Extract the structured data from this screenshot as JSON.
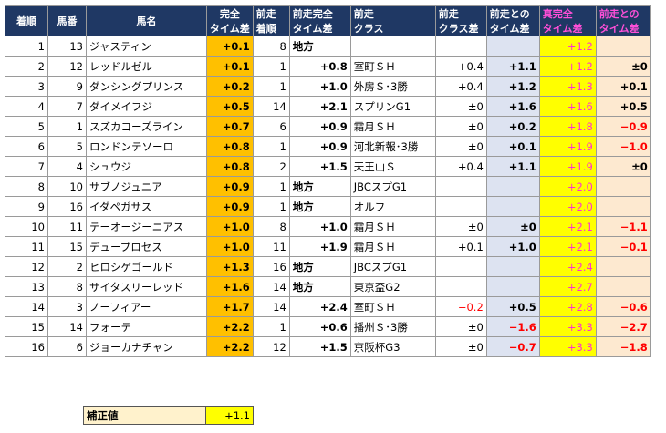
{
  "headers": {
    "rank": [
      "着順"
    ],
    "num": [
      "馬番"
    ],
    "name": [
      "馬名"
    ],
    "full_diff": [
      "完全",
      "タイム差"
    ],
    "prev_rank": [
      "前走",
      "着順"
    ],
    "prev_full": [
      "前走完全",
      "タイム差"
    ],
    "prev_class": [
      "前走",
      "クラス"
    ],
    "class_diff": [
      "前走",
      "クラス差"
    ],
    "prev_time_diff": [
      "前走との",
      "タイム差"
    ],
    "true_full": [
      "真完全",
      "タイム差"
    ],
    "true_prev_diff": [
      "前走との",
      "タイム差"
    ]
  },
  "rows": [
    {
      "rank": "1",
      "num": "13",
      "name": "ジャスティン",
      "full": "+0.1",
      "prev_rank": "8",
      "prev_full": "地方",
      "prev_class": "",
      "class_diff": "",
      "prev_diff": "",
      "true_full": "+1.2",
      "true_prev": ""
    },
    {
      "rank": "2",
      "num": "12",
      "name": "レッドルゼル",
      "full": "+0.1",
      "prev_rank": "1",
      "prev_full": "+0.8",
      "prev_class": "室町ＳＨ",
      "class_diff": "+0.4",
      "prev_diff": "+1.1",
      "true_full": "+1.2",
      "true_prev": "±0"
    },
    {
      "rank": "3",
      "num": "9",
      "name": "ダンシングプリンス",
      "full": "+0.2",
      "prev_rank": "1",
      "prev_full": "+1.0",
      "prev_class": "外房Ｓ･3勝",
      "class_diff": "+0.4",
      "prev_diff": "+1.2",
      "true_full": "+1.3",
      "true_prev": "+0.1"
    },
    {
      "rank": "4",
      "num": "7",
      "name": "ダイメイフジ",
      "full": "+0.5",
      "prev_rank": "14",
      "prev_full": "+2.1",
      "prev_class": "スプリンG1",
      "class_diff": "±0",
      "prev_diff": "+1.6",
      "true_full": "+1.6",
      "true_prev": "+0.5"
    },
    {
      "rank": "5",
      "num": "1",
      "name": "スズカコーズライン",
      "full": "+0.7",
      "prev_rank": "6",
      "prev_full": "+0.9",
      "prev_class": "霜月ＳＨ",
      "class_diff": "±0",
      "prev_diff": "+0.2",
      "true_full": "+1.8",
      "true_prev": "−0.9"
    },
    {
      "rank": "6",
      "num": "5",
      "name": "ロンドンテソーロ",
      "full": "+0.8",
      "prev_rank": "1",
      "prev_full": "+0.9",
      "prev_class": "河北新報･3勝",
      "class_diff": "±0",
      "prev_diff": "+0.1",
      "true_full": "+1.9",
      "true_prev": "−1.0"
    },
    {
      "rank": "7",
      "num": "4",
      "name": "シュウジ",
      "full": "+0.8",
      "prev_rank": "2",
      "prev_full": "+1.5",
      "prev_class": "天王山Ｓ",
      "class_diff": "+0.4",
      "prev_diff": "+1.1",
      "true_full": "+1.9",
      "true_prev": "±0"
    },
    {
      "rank": "8",
      "num": "10",
      "name": "サブノジュニア",
      "full": "+0.9",
      "prev_rank": "1",
      "prev_full": "地方",
      "prev_class": "JBCスプG1",
      "class_diff": "",
      "prev_diff": "",
      "true_full": "+2.0",
      "true_prev": ""
    },
    {
      "rank": "9",
      "num": "16",
      "name": "イダペガサス",
      "full": "+0.9",
      "prev_rank": "1",
      "prev_full": "地方",
      "prev_class": "オルフ",
      "class_diff": "",
      "prev_diff": "",
      "true_full": "+2.0",
      "true_prev": ""
    },
    {
      "rank": "10",
      "num": "11",
      "name": "テーオージーニアス",
      "full": "+1.0",
      "prev_rank": "8",
      "prev_full": "+1.0",
      "prev_class": "霜月ＳＨ",
      "class_diff": "±0",
      "prev_diff": "±0",
      "true_full": "+2.1",
      "true_prev": "−1.1"
    },
    {
      "rank": "11",
      "num": "15",
      "name": "デュープロセス",
      "full": "+1.0",
      "prev_rank": "11",
      "prev_full": "+1.9",
      "prev_class": "霜月ＳＨ",
      "class_diff": "+0.1",
      "prev_diff": "+1.0",
      "true_full": "+2.1",
      "true_prev": "−0.1"
    },
    {
      "rank": "12",
      "num": "2",
      "name": "ヒロシゲゴールド",
      "full": "+1.3",
      "prev_rank": "16",
      "prev_full": "地方",
      "prev_class": "JBCスプG1",
      "class_diff": "",
      "prev_diff": "",
      "true_full": "+2.4",
      "true_prev": ""
    },
    {
      "rank": "13",
      "num": "8",
      "name": "サイタスリーレッド",
      "full": "+1.6",
      "prev_rank": "14",
      "prev_full": "地方",
      "prev_class": "東京盃G2",
      "class_diff": "",
      "prev_diff": "",
      "true_full": "+2.7",
      "true_prev": ""
    },
    {
      "rank": "14",
      "num": "3",
      "name": "ノーフィアー",
      "full": "+1.7",
      "prev_rank": "14",
      "prev_full": "+2.4",
      "prev_class": "室町ＳＨ",
      "class_diff": "−0.2",
      "prev_diff": "+0.5",
      "true_full": "+2.8",
      "true_prev": "−0.6"
    },
    {
      "rank": "15",
      "num": "14",
      "name": "フォーテ",
      "full": "+2.2",
      "prev_rank": "1",
      "prev_full": "+0.6",
      "prev_class": "播州Ｓ･3勝",
      "class_diff": "±0",
      "prev_diff": "−1.6",
      "true_full": "+3.3",
      "true_prev": "−2.7"
    },
    {
      "rank": "16",
      "num": "6",
      "name": "ジョーカナチャン",
      "full": "+2.2",
      "prev_rank": "12",
      "prev_full": "+1.5",
      "prev_class": "京阪杯G3",
      "class_diff": "±0",
      "prev_diff": "−0.7",
      "true_full": "+3.3",
      "true_prev": "−1.8"
    }
  ],
  "correction": {
    "label": "補正値",
    "value": "+1.1"
  },
  "colors": {
    "header_bg": "#1f3864",
    "header_fg": "#ffffff",
    "pink": "#ff4fd8",
    "orange": "#ffc000",
    "lavender": "#dde3f1",
    "yellow": "#ffff00",
    "peach": "#fde9d0",
    "red": "#ff0000"
  }
}
